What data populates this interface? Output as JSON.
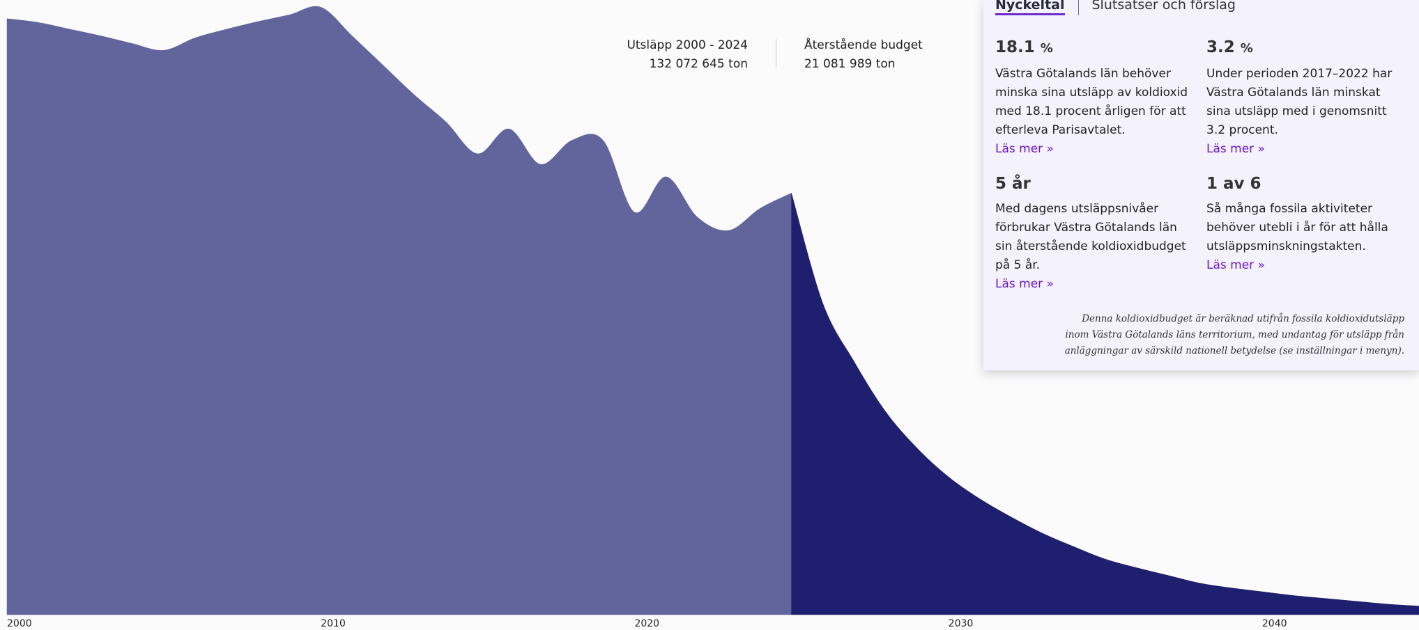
{
  "chart_data": {
    "type": "area",
    "xlim": [
      2000,
      2045
    ],
    "ylim": [
      0,
      6.4
    ],
    "xticks": [
      2000,
      2010,
      2020,
      2030,
      2040
    ],
    "series": [
      {
        "color": "#62659c",
        "x": [
          2000,
          2001,
          2002,
          2003,
          2004,
          2005,
          2006,
          2007,
          2008,
          2009,
          2010,
          2011,
          2012,
          2013,
          2014,
          2015,
          2016,
          2017,
          2018,
          2019,
          2020,
          2021,
          2022,
          2023,
          2024,
          2025
        ],
        "values": [
          6.22,
          6.18,
          6.11,
          6.04,
          5.96,
          5.89,
          6.02,
          6.11,
          6.19,
          6.26,
          6.34,
          6.04,
          5.73,
          5.42,
          5.14,
          4.81,
          5.07,
          4.7,
          4.95,
          4.95,
          4.2,
          4.57,
          4.15,
          4.01,
          4.24,
          4.4
        ]
      },
      {
        "color": "#1e1f6e",
        "x": [
          2025,
          2026,
          2027,
          2028,
          2029,
          2030,
          2031,
          2032,
          2033,
          2034,
          2035,
          2036,
          2037,
          2038,
          2039,
          2040,
          2041,
          2042,
          2043,
          2044,
          2045
        ],
        "values": [
          4.4,
          3.25,
          2.64,
          2.12,
          1.74,
          1.44,
          1.21,
          1.02,
          0.85,
          0.71,
          0.58,
          0.49,
          0.41,
          0.33,
          0.28,
          0.24,
          0.2,
          0.17,
          0.14,
          0.11,
          0.09
        ]
      }
    ]
  },
  "stats": [
    {
      "label": "Utsläpp 2000 - 2024",
      "value": "132 072 645 ton"
    },
    {
      "label": "Återstående budget",
      "value": "21 081 989 ton"
    }
  ],
  "panel": {
    "tabs": [
      "Nyckeltal",
      "Slutsatser och förslag"
    ],
    "cards": [
      {
        "value": "18.1",
        "unit": "%",
        "text": "Västra Götalands län behöver minska sina utsläpp av koldioxid med 18.1 procent årligen för att efterleva Parisavtalet.",
        "link": "Läs mer »"
      },
      {
        "value": "3.2",
        "unit": "%",
        "text": "Under perioden 2017–2022 har Västra Götalands län minskat sina utsläpp med i genomsnitt 3.2 procent.",
        "link": "Läs mer »"
      },
      {
        "value": "5 år",
        "text": "Med dagens utsläppsnivåer förbrukar Västra Götalands län sin återstående koldioxidbudget på 5 år.",
        "link": "Läs mer »"
      },
      {
        "value": "1 av 6",
        "text": "Så många fossila aktiviteter behöver utebli i år för att hålla utsläppsminskningstakten.",
        "link": "Läs mer »"
      }
    ],
    "note": "Denna koldioxidbudget är beräknad utifrån fossila koldioxidutsläpp inom Västra Götalands läns territorium, med undantag för utsläpp från anläggningar av särskild nationell betydelse (se inställningar i menyn)."
  }
}
